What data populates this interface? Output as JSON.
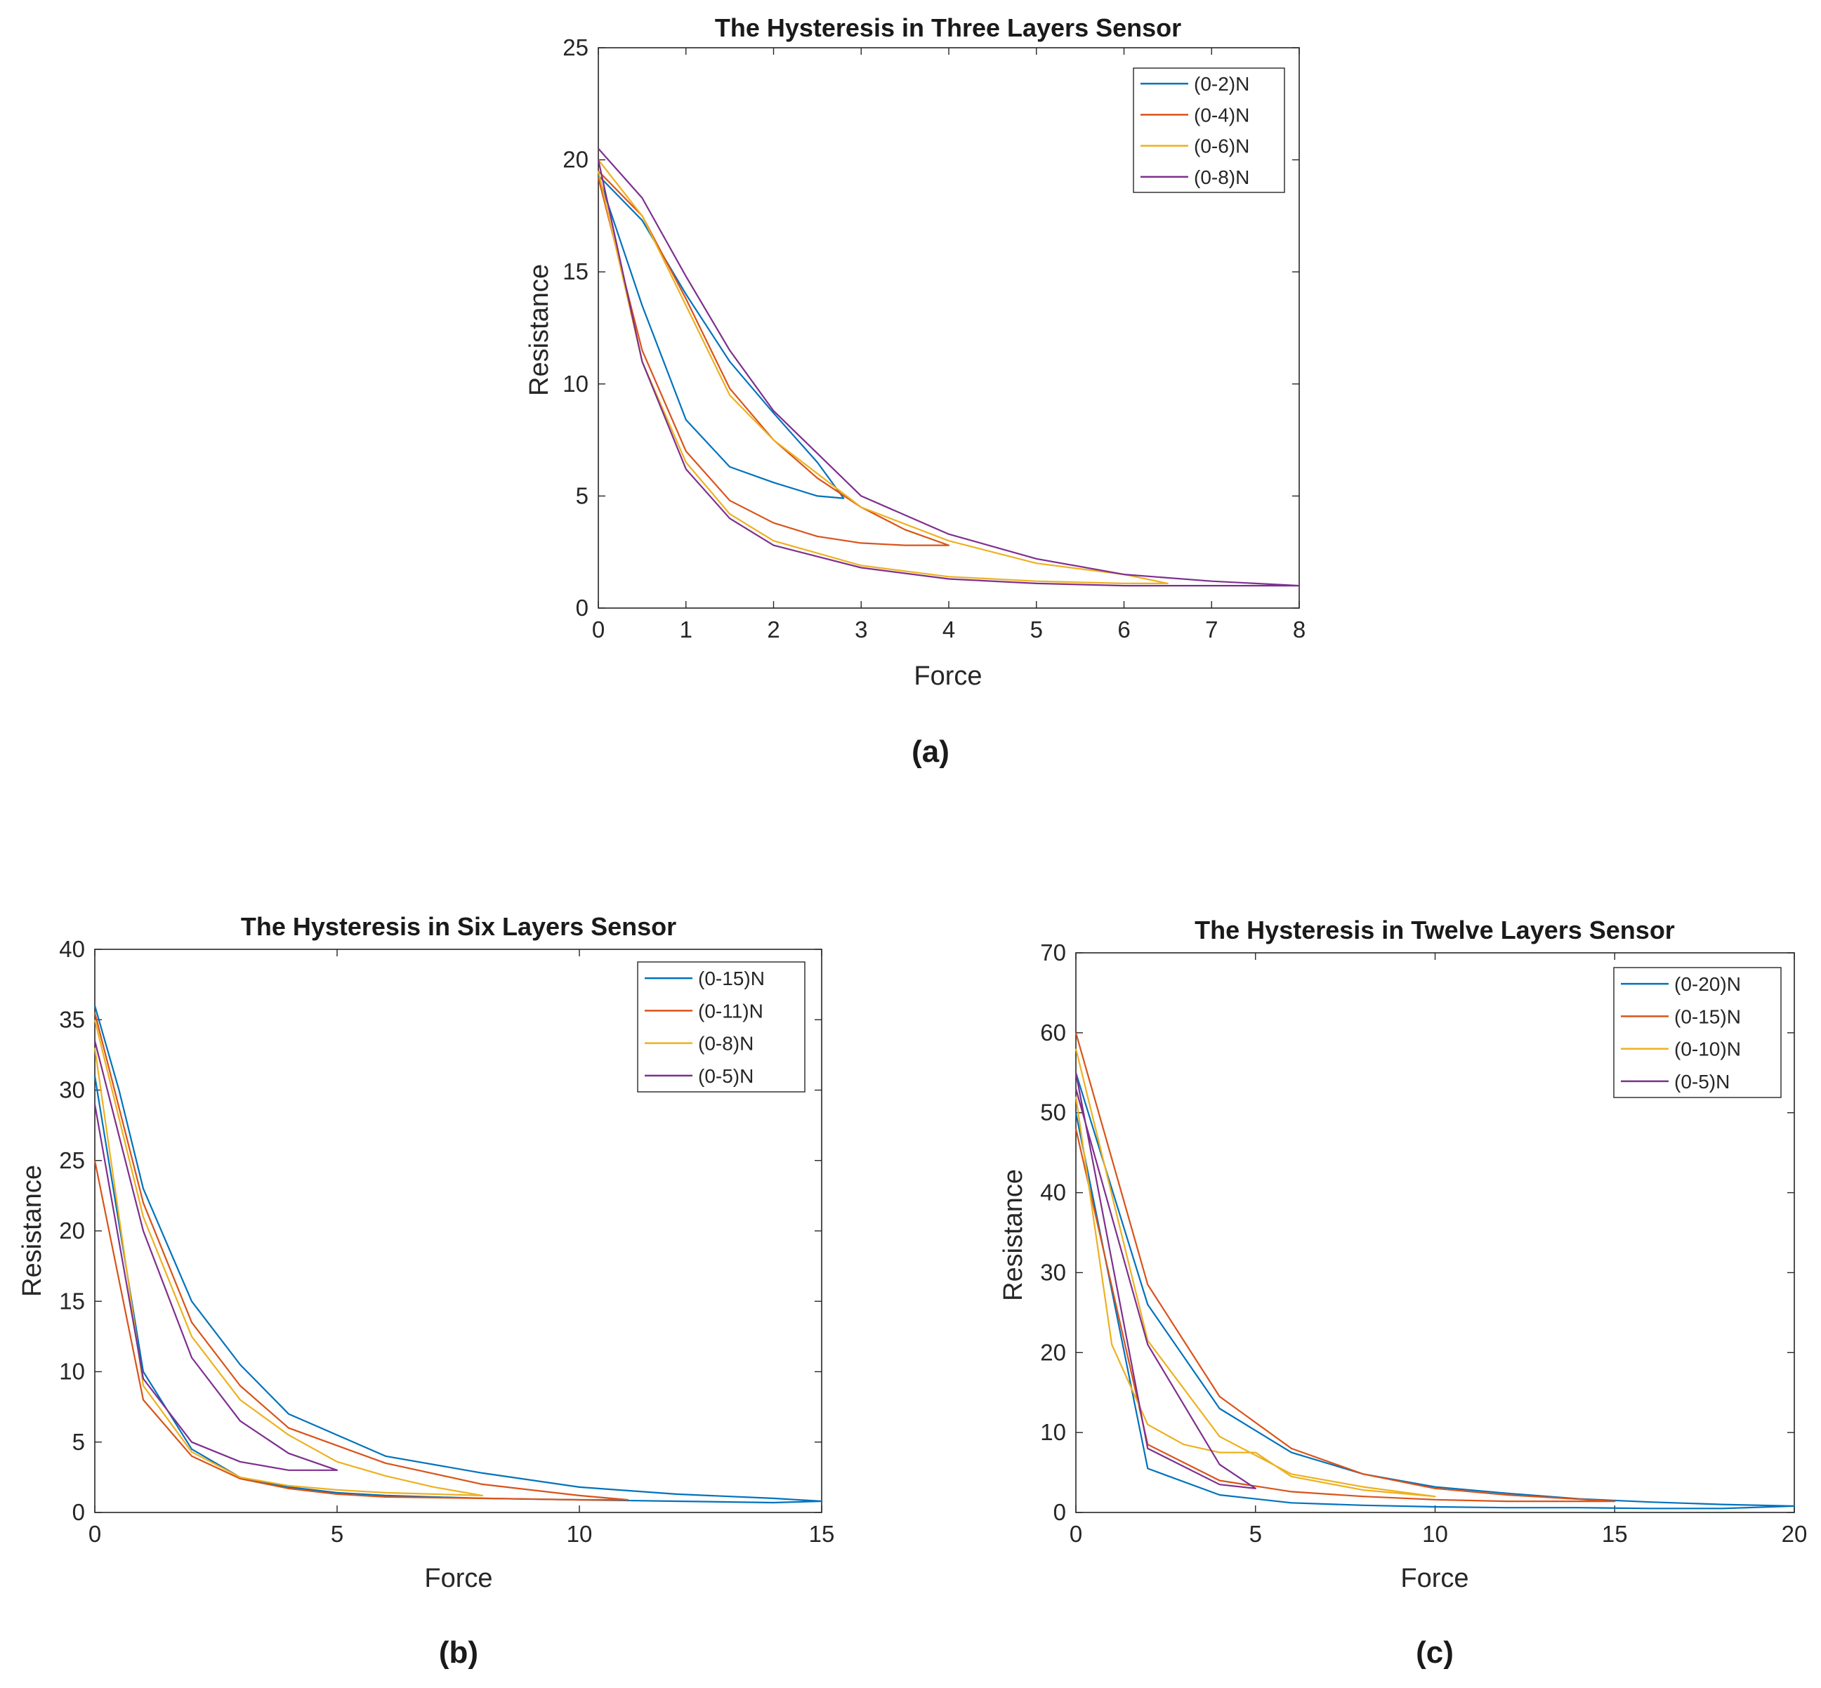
{
  "figure": {
    "panel_labels": [
      "(a)",
      "(b)",
      "(c)"
    ]
  },
  "colors": {
    "series": [
      "#0072BD",
      "#D95319",
      "#EDB120",
      "#7E2F8E"
    ],
    "axis": "#262626",
    "background": "#ffffff"
  },
  "chart_data": [
    {
      "type": "line",
      "title": "The Hysteresis in Three Layers Sensor",
      "xlabel": "Force",
      "ylabel": "Resistance",
      "xlim": [
        0,
        8
      ],
      "ylim": [
        0,
        25
      ],
      "xticks": [
        0,
        1,
        2,
        3,
        4,
        5,
        6,
        7,
        8
      ],
      "yticks": [
        0,
        5,
        10,
        15,
        20,
        25
      ],
      "grid": false,
      "legend": "top-right",
      "series": [
        {
          "name": "(0-2)N",
          "x": [
            0,
            0.5,
            1,
            1.5,
            2,
            2.5,
            2.8,
            2.5,
            2,
            1.5,
            1,
            0.5,
            0
          ],
          "y": [
            19.3,
            13.5,
            8.4,
            6.3,
            5.6,
            5.0,
            4.9,
            6.5,
            8.7,
            11.0,
            14.0,
            17.3,
            19.3
          ]
        },
        {
          "name": "(0-4)N",
          "x": [
            0,
            0.5,
            1,
            1.5,
            2,
            2.5,
            3,
            3.5,
            4,
            3.5,
            3,
            2.5,
            2,
            1.5,
            1,
            0.5,
            0
          ],
          "y": [
            19.2,
            11.5,
            7.0,
            4.8,
            3.8,
            3.2,
            2.9,
            2.8,
            2.8,
            3.5,
            4.5,
            5.8,
            7.5,
            9.8,
            13.8,
            17.5,
            19.5
          ]
        },
        {
          "name": "(0-6)N",
          "x": [
            0,
            0.5,
            1,
            1.5,
            2,
            3,
            4,
            5,
            6,
            6.5,
            6,
            5,
            4,
            3,
            2.5,
            2,
            1.5,
            1,
            0.5,
            0
          ],
          "y": [
            19.5,
            11.0,
            6.5,
            4.2,
            3.0,
            1.9,
            1.4,
            1.2,
            1.1,
            1.1,
            1.5,
            2.0,
            3.0,
            4.5,
            6.0,
            7.5,
            9.5,
            13.5,
            17.5,
            20.0
          ]
        },
        {
          "name": "(0-8)N",
          "x": [
            0,
            0.5,
            1,
            1.5,
            2,
            3,
            4,
            5,
            6,
            7,
            8,
            7,
            6,
            5,
            4,
            3,
            2,
            1.5,
            1,
            0.5,
            0
          ],
          "y": [
            20.0,
            11.0,
            6.2,
            4.0,
            2.8,
            1.8,
            1.3,
            1.1,
            1.0,
            1.0,
            1.0,
            1.2,
            1.5,
            2.2,
            3.3,
            5.0,
            8.8,
            11.5,
            14.8,
            18.3,
            20.5
          ]
        }
      ]
    },
    {
      "type": "line",
      "title": "The Hysteresis in Six Layers Sensor",
      "xlabel": "Force",
      "ylabel": "Resistance",
      "xlim": [
        0,
        15
      ],
      "ylim": [
        0,
        40
      ],
      "xticks": [
        0,
        5,
        10,
        15
      ],
      "yticks": [
        0,
        5,
        10,
        15,
        20,
        25,
        30,
        35,
        40
      ],
      "grid": false,
      "legend": "top-right",
      "series": [
        {
          "name": "(0-15)N",
          "x": [
            0,
            1,
            2,
            3,
            4,
            5,
            6,
            8,
            10,
            12,
            14,
            15,
            14,
            12,
            10,
            8,
            6,
            5,
            4,
            3,
            2,
            1,
            0.5,
            0
          ],
          "y": [
            31.0,
            10.0,
            4.5,
            2.5,
            1.8,
            1.4,
            1.2,
            1.0,
            0.9,
            0.8,
            0.7,
            0.8,
            1.0,
            1.3,
            1.8,
            2.8,
            4.0,
            5.5,
            7.0,
            10.5,
            15.0,
            23.0,
            30.0,
            36.0
          ]
        },
        {
          "name": "(0-11)N",
          "x": [
            0,
            1,
            2,
            3,
            4,
            5,
            6,
            8,
            10,
            11,
            10,
            8,
            6,
            4,
            3,
            2,
            1,
            0
          ],
          "y": [
            25.0,
            8.0,
            4.0,
            2.4,
            1.7,
            1.3,
            1.1,
            1.0,
            0.9,
            0.9,
            1.2,
            2.0,
            3.5,
            6.0,
            9.0,
            13.5,
            22.0,
            35.5
          ]
        },
        {
          "name": "(0-8)N",
          "x": [
            0,
            1,
            2,
            3,
            4,
            5,
            6,
            7,
            8,
            7,
            6,
            5,
            4,
            3,
            2,
            1,
            0
          ],
          "y": [
            33.0,
            9.0,
            4.3,
            2.5,
            1.9,
            1.6,
            1.4,
            1.3,
            1.2,
            1.8,
            2.6,
            3.6,
            5.5,
            8.0,
            12.5,
            21.0,
            35.0
          ]
        },
        {
          "name": "(0-5)N",
          "x": [
            0,
            1,
            2,
            3,
            4,
            5,
            4,
            3,
            2,
            1,
            0
          ],
          "y": [
            29.0,
            9.5,
            5.0,
            3.6,
            3.0,
            3.0,
            4.2,
            6.5,
            11.0,
            20.0,
            33.5
          ]
        }
      ]
    },
    {
      "type": "line",
      "title": "The Hysteresis in Twelve Layers Sensor",
      "xlabel": "Force",
      "ylabel": "Resistance",
      "xlim": [
        0,
        20
      ],
      "ylim": [
        0,
        70
      ],
      "xticks": [
        0,
        5,
        10,
        15,
        20
      ],
      "yticks": [
        0,
        10,
        20,
        30,
        40,
        50,
        60,
        70
      ],
      "grid": false,
      "legend": "top-right",
      "series": [
        {
          "name": "(0-20)N",
          "x": [
            0,
            2,
            4,
            6,
            8,
            10,
            12,
            14,
            16,
            18,
            20,
            18,
            16,
            14,
            12,
            10,
            8,
            6,
            4,
            2,
            0
          ],
          "y": [
            50.0,
            5.5,
            2.2,
            1.2,
            0.9,
            0.7,
            0.6,
            0.6,
            0.5,
            0.5,
            0.8,
            1.0,
            1.3,
            1.7,
            2.4,
            3.2,
            4.8,
            7.5,
            13.0,
            26.0,
            55.0
          ]
        },
        {
          "name": "(0-15)N",
          "x": [
            0,
            2,
            4,
            6,
            8,
            10,
            12,
            15,
            12,
            10,
            8,
            6,
            4,
            2,
            0
          ],
          "y": [
            48.0,
            8.5,
            4.0,
            2.6,
            2.0,
            1.6,
            1.4,
            1.4,
            2.2,
            3.0,
            4.8,
            8.0,
            14.5,
            28.5,
            60.0
          ]
        },
        {
          "name": "(0-10)N",
          "x": [
            0,
            1,
            2,
            3,
            4,
            5,
            6,
            8,
            10,
            8,
            6,
            4,
            2,
            0
          ],
          "y": [
            52.0,
            21.0,
            11.0,
            8.5,
            7.5,
            7.5,
            4.5,
            2.8,
            2.0,
            3.2,
            4.8,
            9.5,
            21.5,
            58.0
          ]
        },
        {
          "name": "(0-5)N",
          "x": [
            0,
            2,
            4,
            5,
            4,
            2,
            0
          ],
          "y": [
            55.0,
            8.0,
            3.5,
            3.0,
            6.0,
            21.0,
            53.0
          ]
        }
      ]
    }
  ]
}
